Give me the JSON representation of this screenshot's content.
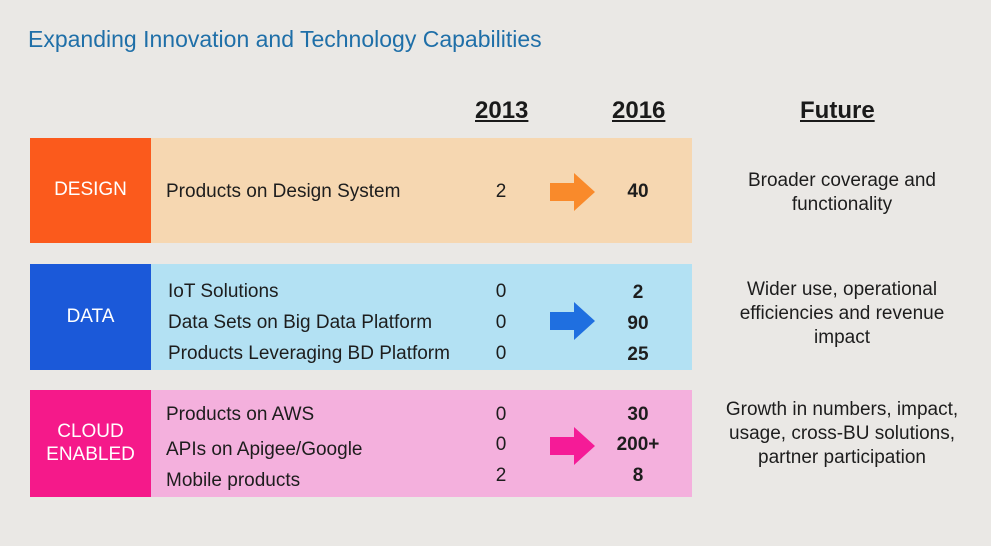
{
  "title": "Expanding Innovation and Technology Capabilities",
  "columns": {
    "y2013": "2013",
    "y2016": "2016",
    "future": "Future"
  },
  "colors": {
    "design_label": "#fb5a1c",
    "design_row": "#f6d7b1",
    "design_arrow": "#f98a2b",
    "data_label": "#1b59d9",
    "data_row": "#b3e1f3",
    "data_arrow": "#1f6fe0",
    "cloud_label": "#f5198a",
    "cloud_row": "#f4b0dd",
    "cloud_arrow": "#f51b97"
  },
  "sections": [
    {
      "label": "DESIGN",
      "items": [
        {
          "name": "Products on Design System",
          "y2013": "2",
          "y2016": "40"
        }
      ],
      "future": "Broader coverage and functionality",
      "arrow_icon": "orange-right-arrow-icon"
    },
    {
      "label": "DATA",
      "items": [
        {
          "name": "IoT Solutions",
          "y2013": "0",
          "y2016": "2"
        },
        {
          "name": "Data Sets on Big Data Platform",
          "y2013": "0",
          "y2016": "90"
        },
        {
          "name": "Products Leveraging BD Platform",
          "y2013": "0",
          "y2016": "25"
        }
      ],
      "future": "Wider use, operational efficiencies and revenue impact",
      "arrow_icon": "blue-right-arrow-icon"
    },
    {
      "label": "CLOUD ENABLED",
      "items": [
        {
          "name": "Products on AWS",
          "y2013": "0",
          "y2016": "30"
        },
        {
          "name": "APIs on Apigee/Google",
          "y2013": "0",
          "y2016": "200+"
        },
        {
          "name": "Mobile products",
          "y2013": "2",
          "y2016": "8"
        }
      ],
      "future": "Growth in numbers, impact, usage, cross-BU solutions, partner participation",
      "arrow_icon": "pink-right-arrow-icon"
    }
  ]
}
